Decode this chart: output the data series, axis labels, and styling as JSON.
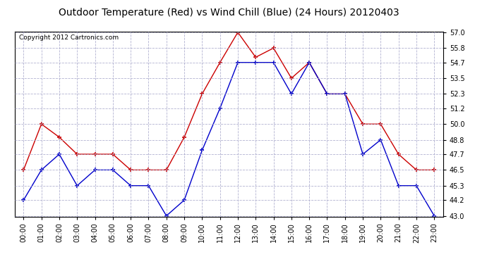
{
  "title": "Outdoor Temperature (Red) vs Wind Chill (Blue) (24 Hours) 20120403",
  "copyright": "Copyright 2012 Cartronics.com",
  "hours": [
    "00:00",
    "01:00",
    "02:00",
    "03:00",
    "04:00",
    "05:00",
    "06:00",
    "07:00",
    "08:00",
    "09:00",
    "10:00",
    "11:00",
    "12:00",
    "13:00",
    "14:00",
    "15:00",
    "16:00",
    "17:00",
    "18:00",
    "19:00",
    "20:00",
    "21:00",
    "22:00",
    "23:00"
  ],
  "temp_red": [
    46.5,
    50.0,
    49.0,
    47.7,
    47.7,
    47.7,
    46.5,
    46.5,
    46.5,
    49.0,
    52.3,
    54.7,
    57.0,
    55.1,
    55.8,
    53.5,
    54.7,
    52.3,
    52.3,
    50.0,
    50.0,
    47.7,
    46.5,
    46.5
  ],
  "wind_blue": [
    44.2,
    46.5,
    47.7,
    45.3,
    46.5,
    46.5,
    45.3,
    45.3,
    43.0,
    44.2,
    48.0,
    51.2,
    54.7,
    54.7,
    54.7,
    52.3,
    54.7,
    52.3,
    52.3,
    47.7,
    48.8,
    45.3,
    45.3,
    43.0
  ],
  "ylim_min": 43.0,
  "ylim_max": 57.0,
  "yticks": [
    43.0,
    44.2,
    45.3,
    46.5,
    47.7,
    48.8,
    50.0,
    51.2,
    52.3,
    53.5,
    54.7,
    55.8,
    57.0
  ],
  "red_color": "#cc0000",
  "blue_color": "#0000cc",
  "bg_color": "#ffffff",
  "grid_color": "#aaaacc",
  "title_fontsize": 10,
  "copyright_fontsize": 6.5,
  "tick_fontsize": 7
}
